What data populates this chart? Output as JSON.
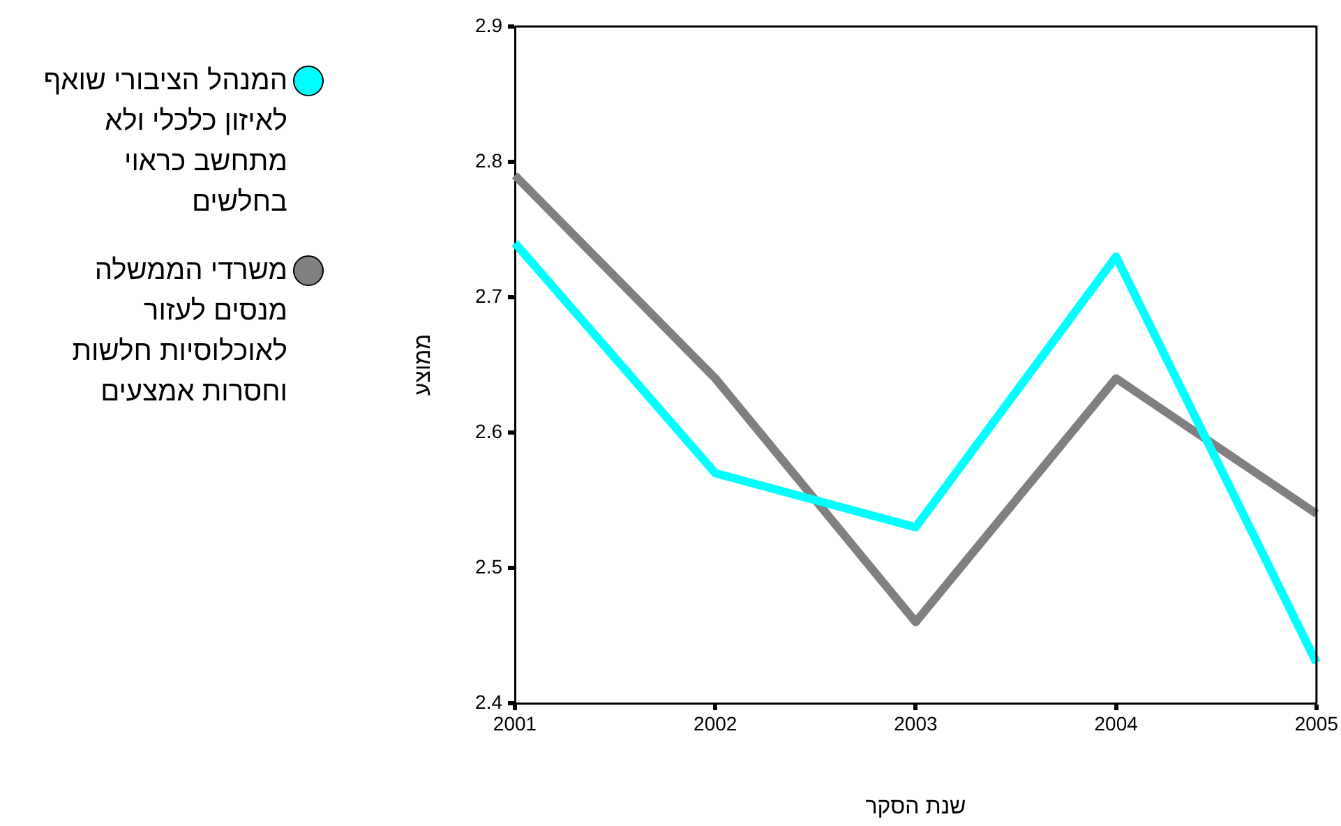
{
  "chart_data": {
    "type": "line",
    "xlabel": "שנת הסקר",
    "ylabel": "ממוצע",
    "categories": [
      "2001",
      "2002",
      "2003",
      "2004",
      "2005"
    ],
    "series": [
      {
        "name": "המנהל הציבורי שואף לאיזון כלכלי ולא מתחשב כראוי בחלשים",
        "color": "#00ffff",
        "values": [
          2.74,
          2.57,
          2.53,
          2.73,
          2.43
        ]
      },
      {
        "name": "משרדי הממשלה מנסים לעזור לאוכלוסיות חלשות וחסרות אמצעים",
        "color": "#808080",
        "values": [
          2.79,
          2.64,
          2.46,
          2.64,
          2.54
        ]
      }
    ],
    "ylim": [
      2.4,
      2.9
    ],
    "yticks": [
      2.4,
      2.5,
      2.6,
      2.7,
      2.8,
      2.9
    ],
    "grid": false,
    "legend": "left",
    "marker": "none",
    "line_style": "solid"
  }
}
